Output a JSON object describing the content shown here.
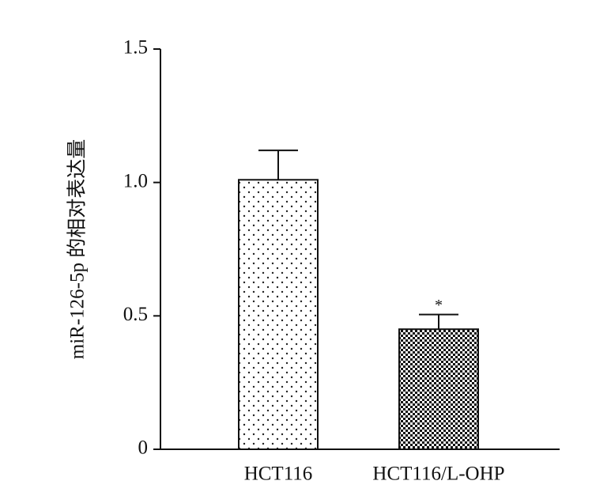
{
  "chart_data": {
    "type": "bar",
    "y_label": "miR-126-5p 的相对表达量",
    "categories": [
      "HCT116",
      "HCT116/L-OHP"
    ],
    "values": [
      1.01,
      0.45
    ],
    "errors": [
      0.11,
      0.055
    ],
    "ylim": [
      0,
      1.5
    ],
    "yticks": [
      0,
      0.5,
      {
        "value": 1,
        "label": "1.0"
      },
      1.5
    ],
    "annotations": [
      {
        "text": "*",
        "category": "HCT116/L-OHP"
      }
    ]
  }
}
